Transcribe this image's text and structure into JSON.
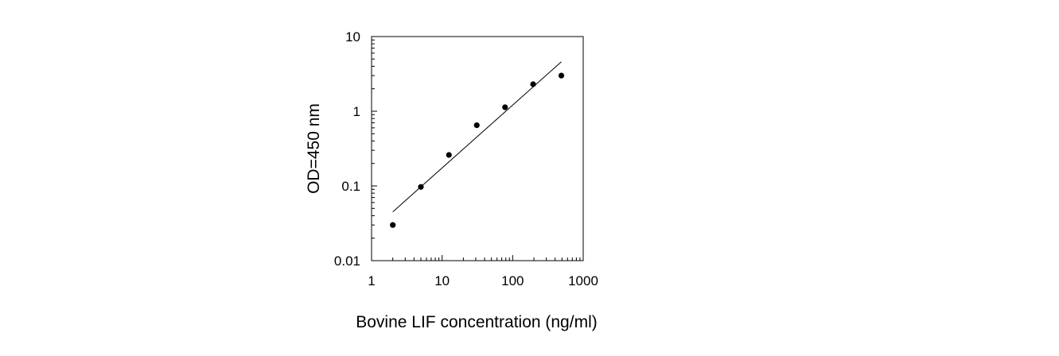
{
  "chart_data": {
    "type": "scatter",
    "title": "",
    "xlabel": "Bovine LIF concentration (ng/ml)",
    "ylabel": "OD=450 nm",
    "x_scale": "log",
    "y_scale": "log",
    "xlim": [
      1,
      1000
    ],
    "ylim": [
      0.01,
      10
    ],
    "x_ticks": [
      1,
      10,
      100,
      1000
    ],
    "x_tick_labels": [
      "1",
      "10",
      "100",
      "1000"
    ],
    "y_ticks": [
      0.01,
      0.1,
      1,
      10
    ],
    "y_tick_labels": [
      "0.01",
      "0.1",
      "1",
      "10"
    ],
    "grid": false,
    "legend": "none",
    "series": [
      {
        "x": [
          2,
          5,
          12.5,
          31,
          78,
          195,
          490
        ],
        "y": [
          0.03,
          0.097,
          0.26,
          0.65,
          1.13,
          2.3,
          3.0
        ],
        "marker_color": "#000000"
      }
    ],
    "fit_line": {
      "x": [
        2,
        490
      ],
      "y": [
        0.045,
        4.6
      ],
      "color": "#000000"
    }
  }
}
